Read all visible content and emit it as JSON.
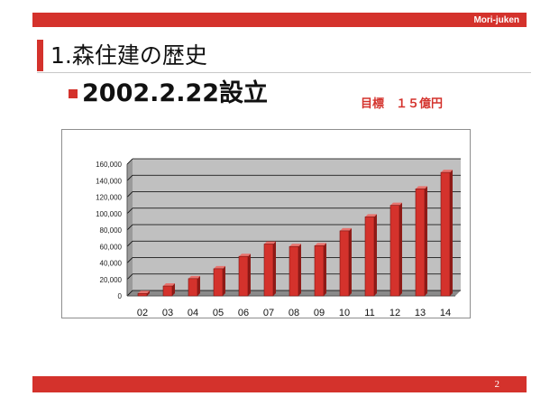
{
  "header": {
    "brand": "Mori-juken"
  },
  "slide": {
    "title": "1.森住建の歴史",
    "headline": "2002.2.22設立",
    "target": "目標　１５億円"
  },
  "footer": {
    "page_number": "2"
  },
  "colors": {
    "accent": "#d4322c",
    "plot_background": "#c0c0c0"
  },
  "chart_data": {
    "type": "bar",
    "categories": [
      "02",
      "03",
      "04",
      "05",
      "06",
      "07",
      "08",
      "09",
      "10",
      "11",
      "12",
      "13",
      "14"
    ],
    "values": [
      3000,
      12000,
      21000,
      33000,
      48000,
      63000,
      60000,
      61000,
      79000,
      96000,
      110000,
      130000,
      150000
    ],
    "yticks": [
      "0",
      "20,000",
      "40,000",
      "60,000",
      "80,000",
      "100,000",
      "120,000",
      "140,000",
      "160,000"
    ],
    "ylim": [
      0,
      160000
    ],
    "bar_color": "#d4322c",
    "grid": true,
    "legend": "none"
  }
}
